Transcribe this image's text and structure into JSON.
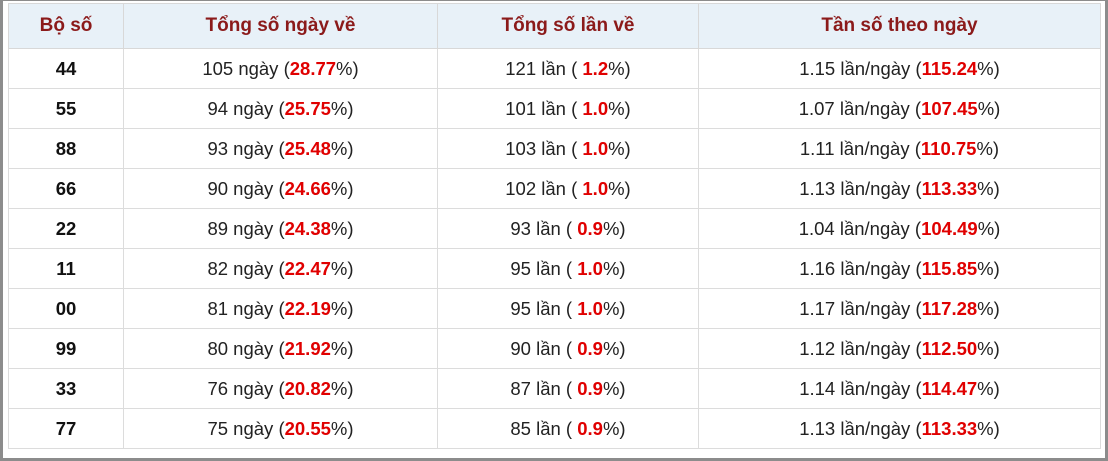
{
  "table": {
    "header": [
      "Bộ số",
      "Tổng số ngày về",
      "Tổng số lần về",
      "Tần số theo ngày"
    ],
    "rows": [
      [
        [
          "44"
        ],
        [
          "105 ngày (",
          "28.77",
          "%)"
        ],
        [
          "121 lần ( ",
          "1.2",
          "%)"
        ],
        [
          "1.15 lần/ngày (",
          "115.24",
          "%)"
        ]
      ],
      [
        [
          "55"
        ],
        [
          "94 ngày (",
          "25.75",
          "%)"
        ],
        [
          "101 lần ( ",
          "1.0",
          "%)"
        ],
        [
          "1.07 lần/ngày (",
          "107.45",
          "%)"
        ]
      ],
      [
        [
          "88"
        ],
        [
          "93 ngày (",
          "25.48",
          "%)"
        ],
        [
          "103 lần ( ",
          "1.0",
          "%)"
        ],
        [
          "1.11 lần/ngày (",
          "110.75",
          "%)"
        ]
      ],
      [
        [
          "66"
        ],
        [
          "90 ngày (",
          "24.66",
          "%)"
        ],
        [
          "102 lần ( ",
          "1.0",
          "%)"
        ],
        [
          "1.13 lần/ngày (",
          "113.33",
          "%)"
        ]
      ],
      [
        [
          "22"
        ],
        [
          "89 ngày (",
          "24.38",
          "%)"
        ],
        [
          "93 lần ( ",
          "0.9",
          "%)"
        ],
        [
          "1.04 lần/ngày (",
          "104.49",
          "%)"
        ]
      ],
      [
        [
          "11"
        ],
        [
          "82 ngày (",
          "22.47",
          "%)"
        ],
        [
          "95 lần ( ",
          "1.0",
          "%)"
        ],
        [
          "1.16 lần/ngày (",
          "115.85",
          "%)"
        ]
      ],
      [
        [
          "00"
        ],
        [
          "81 ngày (",
          "22.19",
          "%)"
        ],
        [
          "95 lần ( ",
          "1.0",
          "%)"
        ],
        [
          "1.17 lần/ngày (",
          "117.28",
          "%)"
        ]
      ],
      [
        [
          "99"
        ],
        [
          "80 ngày (",
          "21.92",
          "%)"
        ],
        [
          "90 lần ( ",
          "0.9",
          "%)"
        ],
        [
          "1.12 lần/ngày (",
          "112.50",
          "%)"
        ]
      ],
      [
        [
          "33"
        ],
        [
          "76 ngày (",
          "20.82",
          "%)"
        ],
        [
          "87 lần ( ",
          "0.9",
          "%)"
        ],
        [
          "1.14 lần/ngày (",
          "114.47",
          "%)"
        ]
      ],
      [
        [
          "77"
        ],
        [
          "75 ngày (",
          "20.55",
          "%)"
        ],
        [
          "85 lần ( ",
          "0.9",
          "%)"
        ],
        [
          "1.13 lần/ngày (",
          "113.33",
          "%)"
        ]
      ]
    ]
  }
}
